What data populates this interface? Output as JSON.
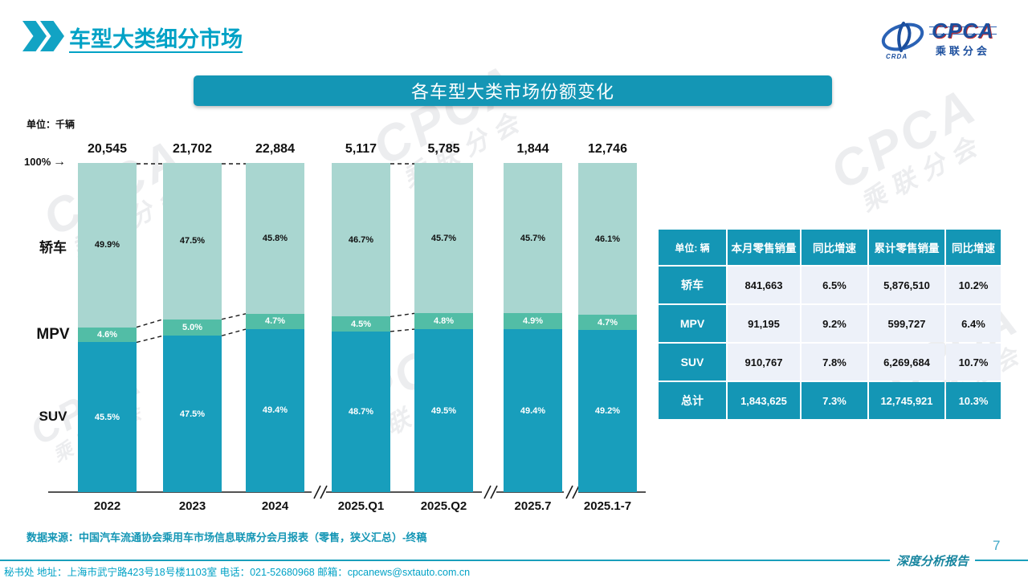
{
  "page": {
    "title": "车型大类细分市场",
    "page_number": "7",
    "report_label": "深度分析报告",
    "source_note": "数据来源：中国汽车流通协会乘用车市场信息联席分会月报表（零售，狭义汇总）-终稿",
    "footer_text": "秘书处  地址：上海市武宁路423号18号楼1103室  电话：021-52680968   邮箱：cpcanews@sxtauto.com.cn"
  },
  "logo": {
    "cpca": "CPCA",
    "sub": "乘联分会",
    "crda": "CRDA"
  },
  "watermark": {
    "line1": "CPCA",
    "line2": "乘联分会"
  },
  "chart": {
    "banner_title": "各车型大类市场份额变化",
    "unit_label": "单位：千辆",
    "axis_100_label": "100%",
    "axis_arrow": "→"
  },
  "chart_data": {
    "type": "bar",
    "stacked": true,
    "percent_axis": true,
    "ylim": [
      0,
      100
    ],
    "title": "各车型大类市场份额变化",
    "unit": "千辆",
    "categories": [
      "2022",
      "2023",
      "2024",
      "2025.Q1",
      "2025.Q2",
      "2025.7",
      "2025.1-7"
    ],
    "totals": [
      "20,545",
      "21,702",
      "22,884",
      "5,117",
      "5,785",
      "1,844",
      "12,746"
    ],
    "series": [
      {
        "name": "轿车",
        "color": "#a9d6d0",
        "label_color": "#111111",
        "values": [
          49.9,
          47.5,
          45.8,
          46.7,
          45.7,
          45.7,
          46.1
        ]
      },
      {
        "name": "MPV",
        "color": "#52bda6",
        "label_color": "#ffffff",
        "values": [
          4.6,
          5.0,
          4.7,
          4.5,
          4.8,
          4.9,
          4.7
        ]
      },
      {
        "name": "SUV",
        "color": "#189ebc",
        "label_color": "#ffffff",
        "values": [
          45.5,
          47.5,
          49.4,
          48.7,
          49.5,
          49.4,
          49.2
        ]
      }
    ],
    "linked_pairs": [
      [
        0,
        1
      ],
      [
        1,
        2
      ],
      [
        3,
        4
      ]
    ],
    "axis_breaks_after": [
      2,
      4,
      5
    ],
    "legend_position": "left-axis-labels",
    "grid": false
  },
  "table": {
    "unit_header": "单位: 辆",
    "columns": [
      "本月零售销量",
      "同比增速",
      "累计零售销量",
      "同比增速"
    ],
    "rows": [
      {
        "label": "轿车",
        "values": [
          "841,663",
          "6.5%",
          "5,876,510",
          "10.2%"
        ],
        "highlight": false
      },
      {
        "label": "MPV",
        "values": [
          "91,195",
          "9.2%",
          "599,727",
          "6.4%"
        ],
        "highlight": false
      },
      {
        "label": "SUV",
        "values": [
          "910,767",
          "7.8%",
          "6,269,684",
          "10.7%"
        ],
        "highlight": false
      },
      {
        "label": "总计",
        "values": [
          "1,843,625",
          "7.3%",
          "12,745,921",
          "10.3%"
        ],
        "highlight": true
      }
    ]
  },
  "colors": {
    "accent_teal": "#1496b5",
    "title_cyan": "#00a2c6",
    "sedan_fill": "#a9d6d0",
    "mpv_fill": "#52bda6",
    "suv_fill": "#189ebc",
    "table_cell_bg": "#edf1f9"
  }
}
